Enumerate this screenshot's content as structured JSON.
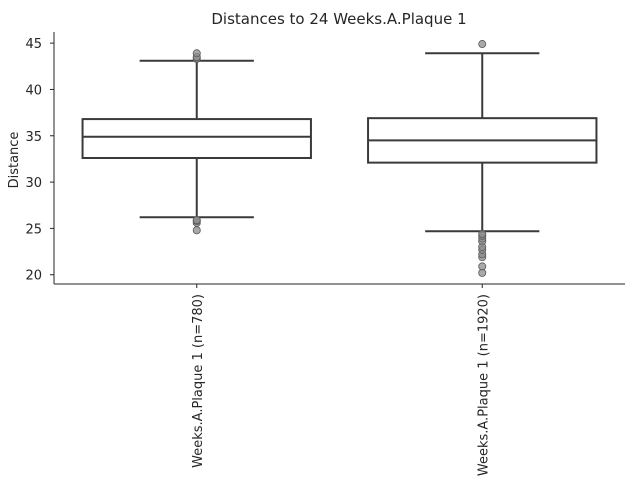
{
  "chart_data": {
    "type": "box",
    "title": "Distances to 24 Weeks.A.Plaque 1",
    "xlabel": "",
    "ylabel": "Distance",
    "ylim": [
      19,
      46.2
    ],
    "yticks": [
      20,
      25,
      30,
      35,
      40,
      45
    ],
    "grid": false,
    "categories": [
      "Weeks.A.Plaque 1 (n=780)",
      "Weeks.A.Plaque 1 (n=1920)"
    ],
    "boxes": [
      {
        "whisker_low": 26.2,
        "q1": 32.6,
        "median": 34.9,
        "q3": 36.8,
        "whisker_high": 43.1,
        "outliers": [
          24.8,
          25.6,
          25.8,
          25.9,
          43.3,
          43.5,
          43.9
        ]
      },
      {
        "whisker_low": 24.7,
        "q1": 32.1,
        "median": 34.5,
        "q3": 36.9,
        "whisker_high": 43.9,
        "outliers": [
          20.2,
          20.9,
          21.9,
          22.2,
          22.7,
          23.0,
          23.6,
          23.9,
          24.2,
          24.4,
          44.9
        ]
      }
    ],
    "colors": {
      "box_edge": "#3a3a3a",
      "outlier_fill": "#8c8c8c",
      "outlier_edge": "#5a5a5a",
      "text": "#262626"
    }
  }
}
